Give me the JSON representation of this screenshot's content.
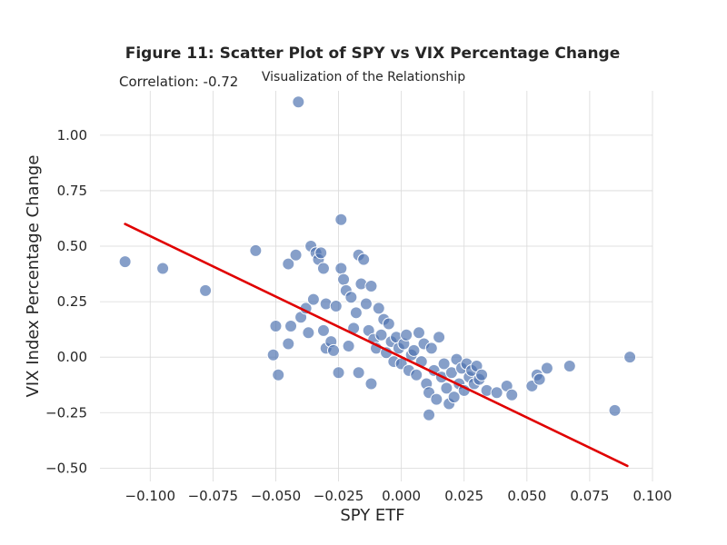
{
  "chart_data": {
    "type": "scatter",
    "title": "Figure 11: Scatter Plot of SPY vs VIX Percentage Change",
    "subtitle": "Visualization of the Relationship",
    "annotation": "Correlation: -0.72",
    "xlabel": "SPY ETF",
    "ylabel": "VIX Index Percentage Change",
    "xlim": [
      -0.12,
      0.1
    ],
    "ylim": [
      -0.56,
      1.2
    ],
    "xticks": [
      -0.1,
      -0.075,
      -0.05,
      -0.025,
      0.0,
      0.025,
      0.05,
      0.075,
      0.1
    ],
    "xtick_labels": [
      "−0.100",
      "−0.075",
      "−0.050",
      "−0.025",
      "0.000",
      "0.025",
      "0.050",
      "0.075",
      "0.100"
    ],
    "yticks": [
      -0.5,
      -0.25,
      0.0,
      0.25,
      0.5,
      0.75,
      1.0
    ],
    "ytick_labels": [
      "−0.50",
      "−0.25",
      "0.00",
      "0.25",
      "0.50",
      "0.75",
      "1.00"
    ],
    "grid": true,
    "point_color": "#4c72b0",
    "line_color": "#e00000",
    "points": [
      [
        -0.11,
        0.43
      ],
      [
        -0.095,
        0.4
      ],
      [
        -0.078,
        0.3
      ],
      [
        -0.058,
        0.48
      ],
      [
        -0.051,
        0.01
      ],
      [
        -0.05,
        0.14
      ],
      [
        -0.049,
        -0.08
      ],
      [
        -0.045,
        0.06
      ],
      [
        -0.044,
        0.14
      ],
      [
        -0.045,
        0.42
      ],
      [
        -0.042,
        0.46
      ],
      [
        -0.041,
        1.15
      ],
      [
        -0.04,
        0.18
      ],
      [
        -0.038,
        0.22
      ],
      [
        -0.037,
        0.11
      ],
      [
        -0.036,
        0.5
      ],
      [
        -0.035,
        0.26
      ],
      [
        -0.034,
        0.47
      ],
      [
        -0.033,
        0.44
      ],
      [
        -0.032,
        0.47
      ],
      [
        -0.031,
        0.4
      ],
      [
        -0.031,
        0.12
      ],
      [
        -0.03,
        0.24
      ],
      [
        -0.03,
        0.04
      ],
      [
        -0.028,
        0.07
      ],
      [
        -0.027,
        0.03
      ],
      [
        -0.026,
        0.23
      ],
      [
        -0.025,
        -0.07
      ],
      [
        -0.024,
        0.62
      ],
      [
        -0.024,
        0.4
      ],
      [
        -0.023,
        0.35
      ],
      [
        -0.022,
        0.3
      ],
      [
        -0.021,
        0.05
      ],
      [
        -0.02,
        0.27
      ],
      [
        -0.019,
        0.13
      ],
      [
        -0.018,
        0.2
      ],
      [
        -0.017,
        0.46
      ],
      [
        -0.017,
        -0.07
      ],
      [
        -0.016,
        0.33
      ],
      [
        -0.015,
        0.44
      ],
      [
        -0.014,
        0.24
      ],
      [
        -0.013,
        0.12
      ],
      [
        -0.012,
        -0.12
      ],
      [
        -0.012,
        0.32
      ],
      [
        -0.011,
        0.08
      ],
      [
        -0.01,
        0.04
      ],
      [
        -0.009,
        0.22
      ],
      [
        -0.008,
        0.1
      ],
      [
        -0.007,
        0.17
      ],
      [
        -0.006,
        0.02
      ],
      [
        -0.005,
        0.15
      ],
      [
        -0.004,
        0.07
      ],
      [
        -0.003,
        -0.02
      ],
      [
        -0.002,
        0.09
      ],
      [
        -0.001,
        0.04
      ],
      [
        0.0,
        -0.03
      ],
      [
        0.001,
        0.06
      ],
      [
        0.002,
        0.1
      ],
      [
        0.003,
        -0.06
      ],
      [
        0.004,
        0.01
      ],
      [
        0.005,
        0.03
      ],
      [
        0.006,
        -0.08
      ],
      [
        0.007,
        0.11
      ],
      [
        0.008,
        -0.02
      ],
      [
        0.009,
        0.06
      ],
      [
        0.01,
        -0.12
      ],
      [
        0.011,
        -0.16
      ],
      [
        0.011,
        -0.26
      ],
      [
        0.012,
        0.04
      ],
      [
        0.013,
        -0.06
      ],
      [
        0.014,
        -0.19
      ],
      [
        0.015,
        0.09
      ],
      [
        0.016,
        -0.09
      ],
      [
        0.017,
        -0.03
      ],
      [
        0.018,
        -0.14
      ],
      [
        0.019,
        -0.21
      ],
      [
        0.02,
        -0.07
      ],
      [
        0.021,
        -0.18
      ],
      [
        0.022,
        -0.01
      ],
      [
        0.023,
        -0.12
      ],
      [
        0.024,
        -0.05
      ],
      [
        0.025,
        -0.15
      ],
      [
        0.026,
        -0.03
      ],
      [
        0.027,
        -0.09
      ],
      [
        0.028,
        -0.06
      ],
      [
        0.029,
        -0.12
      ],
      [
        0.03,
        -0.04
      ],
      [
        0.031,
        -0.1
      ],
      [
        0.032,
        -0.08
      ],
      [
        0.034,
        -0.15
      ],
      [
        0.038,
        -0.16
      ],
      [
        0.042,
        -0.13
      ],
      [
        0.044,
        -0.17
      ],
      [
        0.052,
        -0.13
      ],
      [
        0.054,
        -0.08
      ],
      [
        0.055,
        -0.1
      ],
      [
        0.058,
        -0.05
      ],
      [
        0.067,
        -0.04
      ],
      [
        0.085,
        -0.24
      ],
      [
        0.091,
        0.0
      ]
    ],
    "regression_line": {
      "x": [
        -0.11,
        0.09
      ],
      "y": [
        0.6,
        -0.49
      ]
    }
  }
}
